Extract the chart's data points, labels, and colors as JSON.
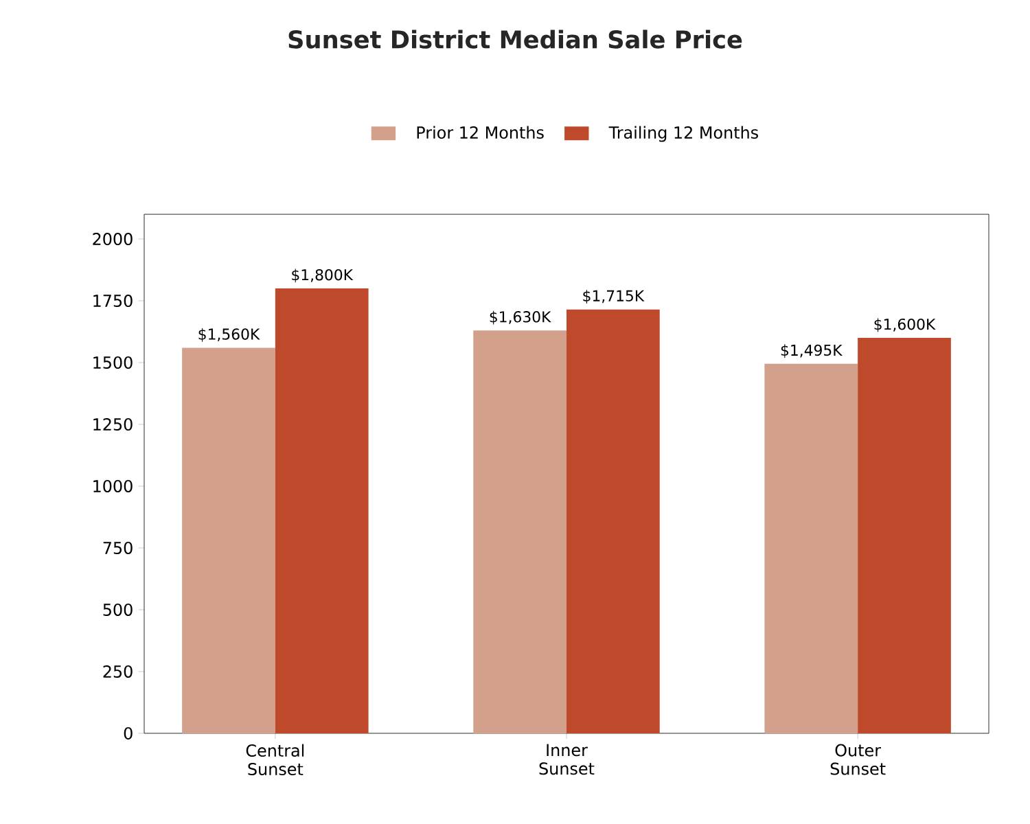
{
  "chart_data": {
    "type": "bar",
    "title": "Sunset District Median Sale Price",
    "categories": [
      "Central Sunset",
      "Inner Sunset",
      "Outer Sunset"
    ],
    "series": [
      {
        "name": "Prior 12 Months",
        "color": "#d3a08c",
        "values": [
          1560,
          1630,
          1495
        ],
        "value_labels": [
          "$1,560K",
          "$1,630K",
          "$1,495K"
        ]
      },
      {
        "name": "Trailing 12 Months",
        "color": "#bf4a2b",
        "values": [
          1800,
          1715,
          1600
        ],
        "value_labels": [
          "$1,800K",
          "$1,715K",
          "$1,600K"
        ]
      }
    ],
    "ylim": [
      0,
      2100
    ],
    "yticks": [
      0,
      250,
      500,
      750,
      1000,
      1250,
      1500,
      1750,
      2000
    ],
    "legend": "top"
  }
}
